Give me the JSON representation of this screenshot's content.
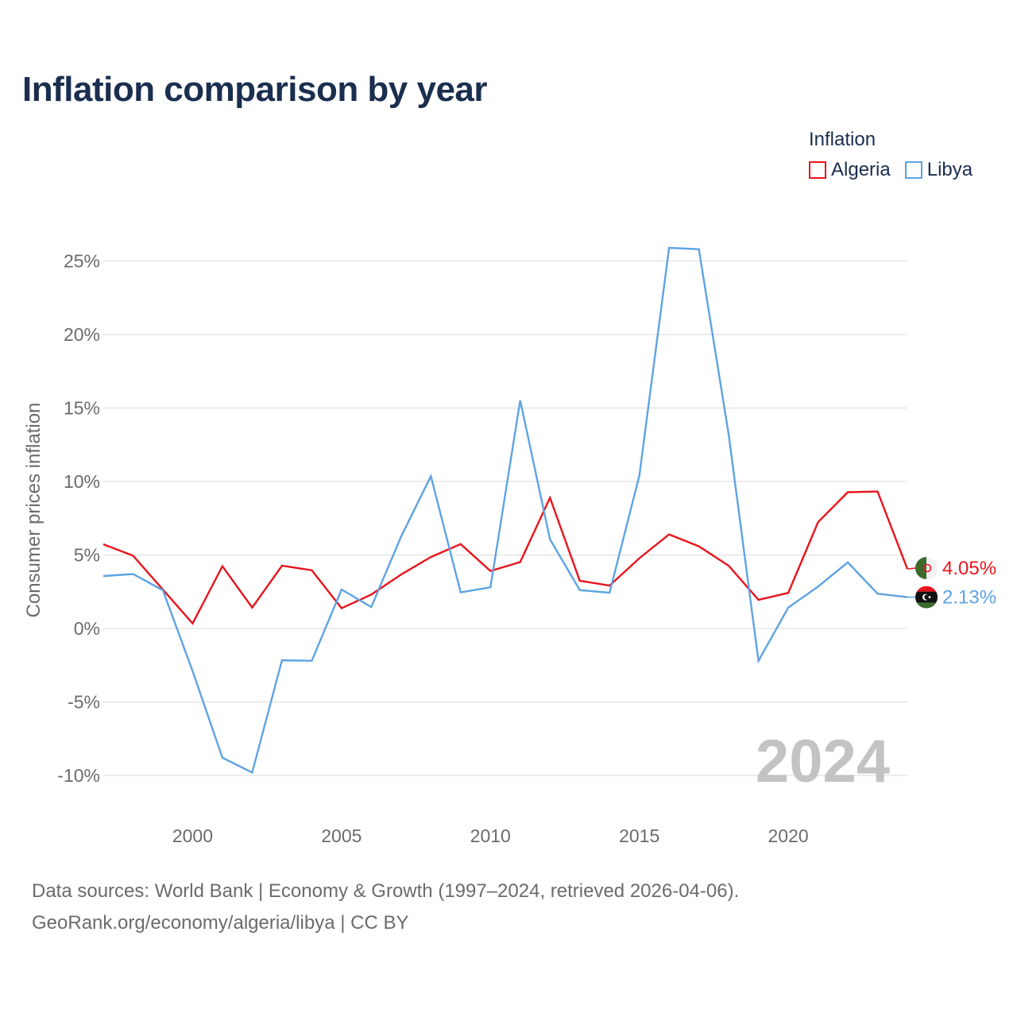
{
  "title": "Inflation comparison by year",
  "legend": {
    "title": "Inflation",
    "items": [
      {
        "label": "Algeria",
        "color": "#e8141c"
      },
      {
        "label": "Libya",
        "color": "#5ea3e3"
      }
    ]
  },
  "year_watermark": "2024",
  "source": {
    "line1": "Data sources: World Bank | Economy & Growth (1997–2024, retrieved 2026-04-06).",
    "line2": "GeoRank.org/economy/algeria/libya | CC BY"
  },
  "chart_data": {
    "type": "line",
    "ylabel": "Consumer prices inflation",
    "xlabel": "",
    "xlim": [
      1997,
      2024
    ],
    "ylim": [
      -12,
      27
    ],
    "x_ticks": [
      2000,
      2005,
      2010,
      2015,
      2020
    ],
    "y_ticks": [
      {
        "value": 25,
        "label": "25%"
      },
      {
        "value": 20,
        "label": "20%"
      },
      {
        "value": 15,
        "label": "15%"
      },
      {
        "value": 10,
        "label": "10%"
      },
      {
        "value": 5,
        "label": "5%"
      },
      {
        "value": 0,
        "label": "0%"
      },
      {
        "value": -5,
        "label": "-5%"
      },
      {
        "value": -10,
        "label": "-10%"
      }
    ],
    "x": [
      1997,
      1998,
      1999,
      2000,
      2001,
      2002,
      2003,
      2004,
      2005,
      2006,
      2007,
      2008,
      2009,
      2010,
      2011,
      2012,
      2013,
      2014,
      2015,
      2016,
      2017,
      2018,
      2019,
      2020,
      2021,
      2022,
      2023,
      2024
    ],
    "series": [
      {
        "name": "Algeria",
        "color": "#e8141c",
        "end_label": "4.05%",
        "values": [
          5.73,
          4.95,
          2.65,
          0.34,
          4.23,
          1.42,
          4.27,
          3.96,
          1.38,
          2.31,
          3.67,
          4.86,
          5.74,
          3.91,
          4.52,
          8.89,
          3.25,
          2.92,
          4.78,
          6.4,
          5.59,
          4.27,
          1.95,
          2.42,
          7.23,
          9.27,
          9.32,
          4.05
        ]
      },
      {
        "name": "Libya",
        "color": "#5ea3e3",
        "end_label": "2.13%",
        "values": [
          3.57,
          3.7,
          2.6,
          -2.9,
          -8.79,
          -9.8,
          -2.16,
          -2.2,
          2.65,
          1.46,
          6.25,
          10.36,
          2.46,
          2.8,
          15.52,
          6.07,
          2.61,
          2.43,
          10.4,
          25.9,
          25.8,
          13.2,
          -2.2,
          1.42,
          2.85,
          4.5,
          2.37,
          2.13
        ]
      }
    ]
  }
}
